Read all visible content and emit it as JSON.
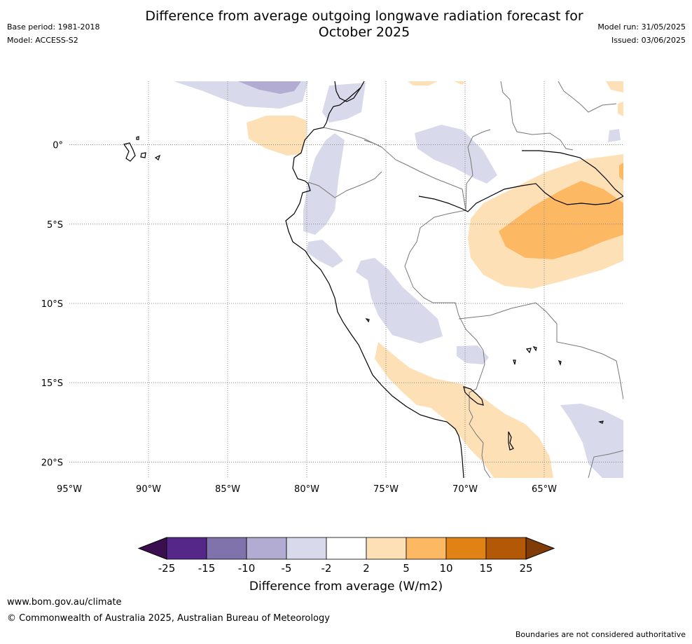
{
  "header": {
    "title_line1": "Difference from average outgoing longwave radiation forecast for",
    "title_line2": "October 2025",
    "base_period": "Base period: 1981-2018",
    "model": "Model: ACCESS-S2",
    "model_run": "Model run: 31/05/2025",
    "issued": "Issued: 03/06/2025"
  },
  "map": {
    "lon_labels": [
      "95°W",
      "90°W",
      "85°W",
      "80°W",
      "75°W",
      "70°W",
      "65°W"
    ],
    "lat_labels": [
      "0°",
      "5°S",
      "10°S",
      "15°S",
      "20°S"
    ],
    "lon_range": [
      -95,
      -60
    ],
    "lat_range": [
      -21,
      4
    ],
    "grid": true,
    "colors": {
      "land_border": "#777777",
      "coast": "#000000",
      "grid": "#888888"
    }
  },
  "colorbar": {
    "title": "Difference from average (W/m2)",
    "ticks": [
      "-25",
      "-15",
      "-10",
      "-5",
      "-2",
      "2",
      "5",
      "10",
      "15",
      "25"
    ],
    "colors": [
      "#3b0f4f",
      "#542788",
      "#8073ac",
      "#b2abd2",
      "#d8daeb",
      "#ffffff",
      "#fee0b6",
      "#fdb863",
      "#e08214",
      "#b35806",
      "#7f3b08"
    ]
  },
  "footer": {
    "website": "www.bom.gov.au/climate",
    "copyright": "© Commonwealth of Australia 2025, Australian Bureau of Meteorology",
    "disclaimer": "Boundaries are not considered authoritative"
  }
}
